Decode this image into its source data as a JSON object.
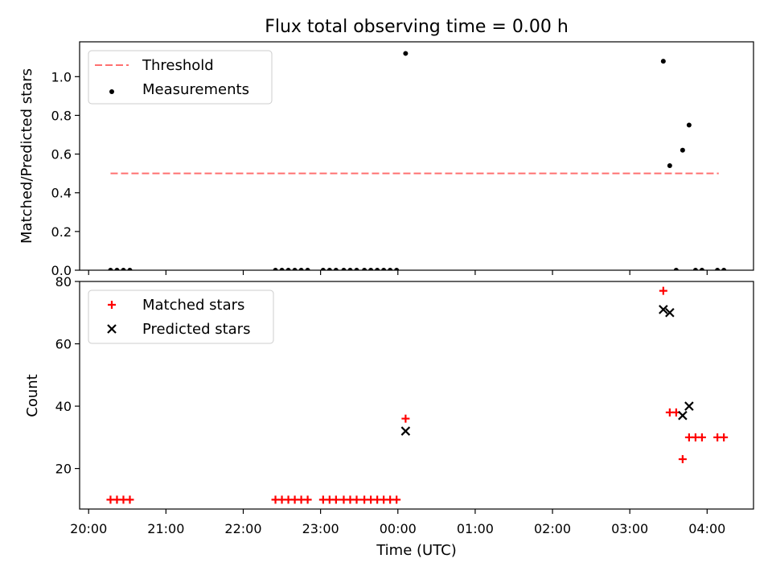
{
  "title": "Flux total observing time = 0.00 h",
  "chart_data": [
    {
      "type": "scatter",
      "ylabel": "Matched/Predicted stars",
      "ylim": [
        0,
        1.18
      ],
      "xlim": [
        "2023-01-01T19:53",
        "2023-01-02T04:36"
      ],
      "yticks": [
        0.0,
        0.2,
        0.4,
        0.6,
        0.8,
        1.0
      ],
      "ytick_labels": [
        "0.0",
        "0.2",
        "0.4",
        "0.6",
        "0.8",
        "1.0"
      ],
      "legend_position": "top-left",
      "threshold": {
        "name": "Threshold",
        "value": 0.5,
        "x_start": "2023-01-01T20:17",
        "x_end": "2023-01-02T04:09",
        "color": "#ff7070"
      },
      "series": [
        {
          "name": "Measurements",
          "marker": "dot",
          "color": "#000000",
          "x": [
            "2023-01-01T20:17",
            "2023-01-01T20:22",
            "2023-01-01T20:27",
            "2023-01-01T20:32",
            "2023-01-01T22:25",
            "2023-01-01T22:30",
            "2023-01-01T22:35",
            "2023-01-01T22:40",
            "2023-01-01T22:45",
            "2023-01-01T22:50",
            "2023-01-01T23:02",
            "2023-01-01T23:07",
            "2023-01-01T23:12",
            "2023-01-01T23:18",
            "2023-01-01T23:23",
            "2023-01-01T23:28",
            "2023-01-01T23:34",
            "2023-01-01T23:39",
            "2023-01-01T23:44",
            "2023-01-01T23:49",
            "2023-01-01T23:54",
            "2023-01-01T23:59",
            "2023-01-02T00:06",
            "2023-01-02T03:26",
            "2023-01-02T03:31",
            "2023-01-02T03:36",
            "2023-01-02T03:41",
            "2023-01-02T03:46",
            "2023-01-02T03:51",
            "2023-01-02T03:56",
            "2023-01-02T04:08",
            "2023-01-02T04:13"
          ],
          "y": [
            0,
            0,
            0,
            0,
            0,
            0,
            0,
            0,
            0,
            0,
            0,
            0,
            0,
            0,
            0,
            0,
            0,
            0,
            0,
            0,
            0,
            0,
            1.12,
            1.08,
            0.54,
            0,
            0.62,
            0.75,
            0,
            0,
            0,
            0
          ]
        }
      ]
    },
    {
      "type": "scatter",
      "ylabel": "Count",
      "xlabel": "Time (UTC)",
      "ylim": [
        7,
        80
      ],
      "xlim": [
        "2023-01-01T19:53",
        "2023-01-02T04:36"
      ],
      "yticks": [
        20,
        40,
        60,
        80
      ],
      "ytick_labels": [
        "20",
        "40",
        "60",
        "80"
      ],
      "xticks": [
        "2023-01-01T20:00",
        "2023-01-01T21:00",
        "2023-01-01T22:00",
        "2023-01-01T23:00",
        "2023-01-02T00:00",
        "2023-01-02T01:00",
        "2023-01-02T02:00",
        "2023-01-02T03:00",
        "2023-01-02T04:00"
      ],
      "xtick_labels": [
        "20:00",
        "21:00",
        "22:00",
        "23:00",
        "00:00",
        "01:00",
        "02:00",
        "03:00",
        "04:00"
      ],
      "legend_position": "top-left",
      "series": [
        {
          "name": "Matched stars",
          "marker": "plus",
          "color": "#ff0000",
          "x": [
            "2023-01-01T20:17",
            "2023-01-01T20:22",
            "2023-01-01T20:27",
            "2023-01-01T20:32",
            "2023-01-01T22:25",
            "2023-01-01T22:30",
            "2023-01-01T22:35",
            "2023-01-01T22:40",
            "2023-01-01T22:45",
            "2023-01-01T22:50",
            "2023-01-01T23:02",
            "2023-01-01T23:07",
            "2023-01-01T23:12",
            "2023-01-01T23:18",
            "2023-01-01T23:23",
            "2023-01-01T23:28",
            "2023-01-01T23:34",
            "2023-01-01T23:39",
            "2023-01-01T23:44",
            "2023-01-01T23:49",
            "2023-01-01T23:54",
            "2023-01-01T23:59",
            "2023-01-02T00:06",
            "2023-01-02T03:26",
            "2023-01-02T03:31",
            "2023-01-02T03:36",
            "2023-01-02T03:41",
            "2023-01-02T03:46",
            "2023-01-02T03:51",
            "2023-01-02T03:56",
            "2023-01-02T04:08",
            "2023-01-02T04:13"
          ],
          "y": [
            10,
            10,
            10,
            10,
            10,
            10,
            10,
            10,
            10,
            10,
            10,
            10,
            10,
            10,
            10,
            10,
            10,
            10,
            10,
            10,
            10,
            10,
            36,
            77,
            38,
            38,
            23,
            30,
            30,
            30,
            30,
            30
          ]
        },
        {
          "name": "Predicted stars",
          "marker": "x",
          "color": "#000000",
          "x": [
            "2023-01-02T00:06",
            "2023-01-02T03:26",
            "2023-01-02T03:31",
            "2023-01-02T03:41",
            "2023-01-02T03:46"
          ],
          "y": [
            32,
            71,
            70,
            37,
            40
          ]
        }
      ]
    }
  ]
}
